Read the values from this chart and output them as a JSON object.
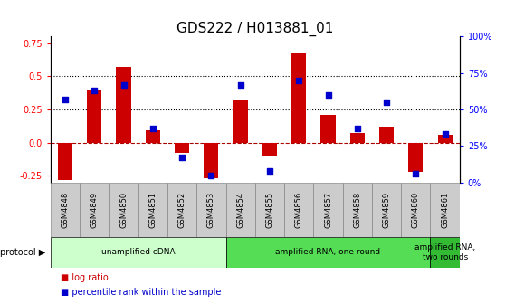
{
  "title": "GDS222 / H013881_01",
  "samples": [
    "GSM4848",
    "GSM4849",
    "GSM4850",
    "GSM4851",
    "GSM4852",
    "GSM4853",
    "GSM4854",
    "GSM4855",
    "GSM4856",
    "GSM4857",
    "GSM4858",
    "GSM4859",
    "GSM4860",
    "GSM4861"
  ],
  "log_ratio": [
    -0.28,
    0.4,
    0.57,
    0.09,
    -0.08,
    -0.27,
    0.32,
    -0.1,
    0.67,
    0.21,
    0.07,
    0.12,
    -0.22,
    0.06
  ],
  "percentile": [
    57,
    63,
    67,
    37,
    17,
    5,
    67,
    8,
    70,
    60,
    37,
    55,
    6,
    33
  ],
  "bar_color": "#cc0000",
  "dot_color": "#0000cc",
  "ylim_left": [
    -0.3,
    0.8
  ],
  "ylim_right": [
    0,
    100
  ],
  "yticks_left": [
    -0.25,
    0.0,
    0.25,
    0.5,
    0.75
  ],
  "yticks_right": [
    0,
    25,
    50,
    75,
    100
  ],
  "hlines": [
    0.25,
    0.5
  ],
  "protocols": [
    {
      "label": "unamplified cDNA",
      "start": 0,
      "end": 5,
      "color": "#ccffcc"
    },
    {
      "label": "amplified RNA, one round",
      "start": 6,
      "end": 12,
      "color": "#55dd55"
    },
    {
      "label": "amplified RNA,\ntwo rounds",
      "start": 13,
      "end": 13,
      "color": "#33bb33"
    }
  ],
  "legend_items": [
    {
      "color": "#cc0000",
      "label": "log ratio"
    },
    {
      "color": "#0000cc",
      "label": "percentile rank within the sample"
    }
  ],
  "protocol_label": "protocol",
  "sample_box_color": "#cccccc",
  "title_fontsize": 11,
  "tick_fontsize": 7,
  "bar_width": 0.5
}
